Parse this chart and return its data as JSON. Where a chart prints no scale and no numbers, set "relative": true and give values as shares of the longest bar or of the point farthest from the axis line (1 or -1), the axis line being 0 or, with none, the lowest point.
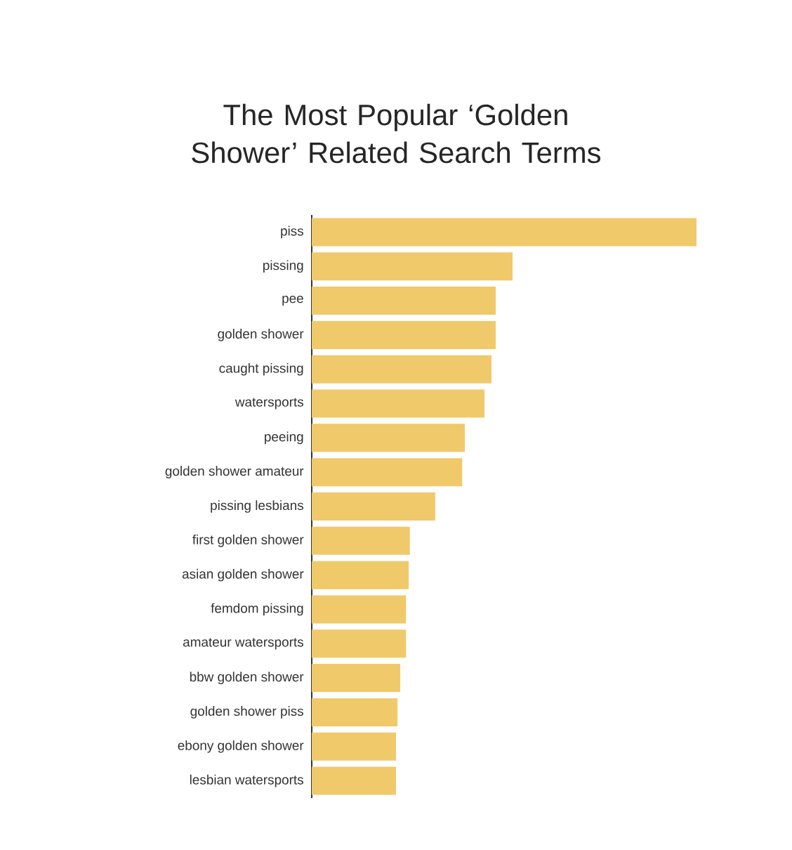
{
  "chart_data": {
    "type": "bar",
    "orientation": "horizontal",
    "relative": true,
    "color": "#f0c96a",
    "title": "The Most Popular ‘Golden Shower’ Related Search Terms",
    "categories": [
      "piss",
      "pissing",
      "pee",
      "golden shower",
      "caught pissing",
      "watersports",
      "peeing",
      "golden shower amateur",
      "pissing lesbians",
      "first golden shower",
      "asian golden shower",
      "femdom pissing",
      "amateur watersports",
      "bbw golden shower",
      "golden shower piss",
      "ebony golden shower",
      "lesbian watersports"
    ],
    "values": [
      1,
      0.522,
      0.478,
      0.478,
      0.467,
      0.449,
      0.398,
      0.391,
      0.321,
      0.255,
      0.252,
      0.245,
      0.245,
      0.23,
      0.223,
      0.219,
      0.219
    ]
  }
}
